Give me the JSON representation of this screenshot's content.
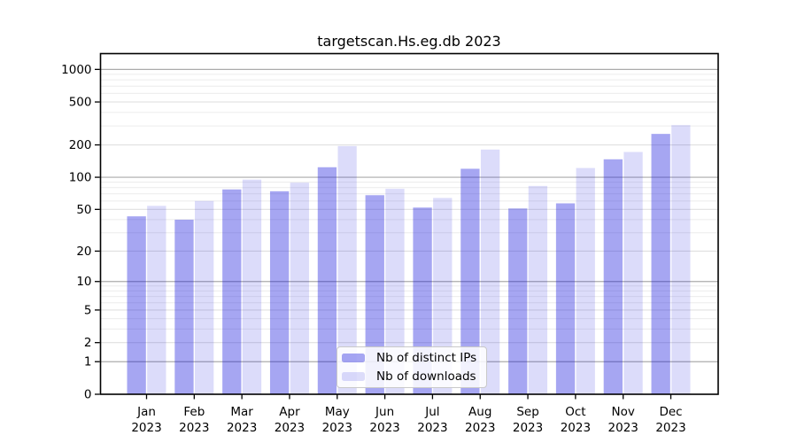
{
  "title": "targetscan.Hs.eg.db 2023",
  "chart_data": {
    "type": "bar",
    "title": "targetscan.Hs.eg.db 2023",
    "categories": [
      "Jan",
      "Feb",
      "Mar",
      "Apr",
      "May",
      "Jun",
      "Jul",
      "Aug",
      "Sep",
      "Oct",
      "Nov",
      "Dec"
    ],
    "x_year_label": "2023",
    "series": [
      {
        "name": "Nb of distinct IPs",
        "hex": "#a8a8f2",
        "fill": "rgba(20,20,220,0.38)",
        "values": [
          43,
          40,
          77,
          74,
          124,
          68,
          52,
          120,
          51,
          57,
          147,
          253
        ]
      },
      {
        "name": "Nb of downloads",
        "hex": "#dcdcfa",
        "fill": "rgba(20,20,220,0.15)",
        "values": [
          54,
          60,
          95,
          89,
          195,
          78,
          64,
          181,
          83,
          122,
          172,
          305
        ]
      }
    ],
    "yscale": "log1p",
    "ylim": [
      0,
      1400
    ],
    "y_ticks": [
      0,
      1,
      2,
      5,
      10,
      20,
      50,
      100,
      200,
      500,
      1000
    ],
    "y_major_gridlines": [
      1,
      10,
      100,
      1000
    ],
    "y_mid_gridlines": [
      2,
      5,
      20,
      50,
      200,
      500
    ],
    "y_minor_gridlines": [
      3,
      4,
      6,
      7,
      8,
      9,
      30,
      40,
      60,
      70,
      80,
      90,
      300,
      400,
      600,
      700,
      800,
      900
    ],
    "grid": true,
    "legend_position": "bottom-center"
  },
  "colors": {
    "frame": "#000000",
    "grid_major": "#ababab",
    "grid_mid": "#e0e0e0",
    "grid_minor": "#ececec",
    "tick": "#000000",
    "legend_border": "#c9c9c9"
  }
}
